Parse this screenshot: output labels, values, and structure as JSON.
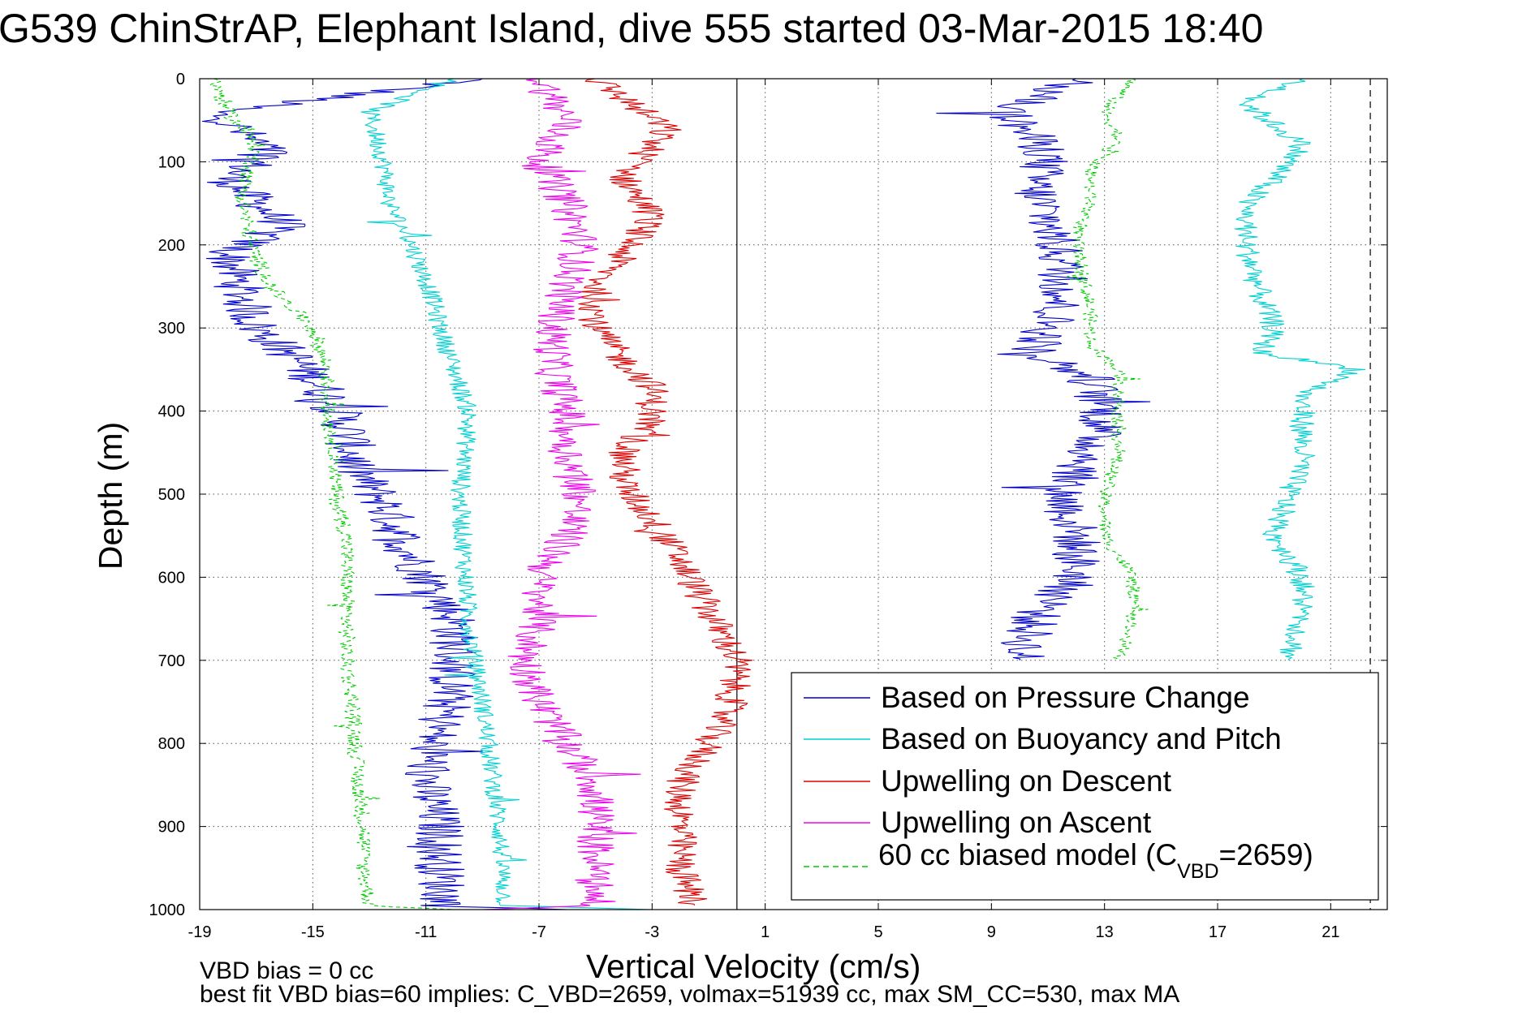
{
  "chart_data": {
    "type": "line",
    "title": "G539 ChinStrAP, Elephant Island, dive 555 started 03-Mar-2015 18:40",
    "xlabel": "Vertical Velocity (cm/s)",
    "ylabel": "Depth (m)",
    "xlim": [
      -19,
      23
    ],
    "ylim": [
      1000,
      0
    ],
    "y_reversed": true,
    "grid": true,
    "legend_position": "bottom-right",
    "x_ticks": [
      "-19",
      "-15",
      "-11",
      "-7",
      "-3",
      "1",
      "5",
      "9",
      "13",
      "17",
      "21"
    ],
    "y_ticks": [
      "0",
      "100",
      "200",
      "300",
      "400",
      "500",
      "600",
      "700",
      "800",
      "900",
      "1000"
    ],
    "reference_lines": [
      {
        "x": 0,
        "style": "solid",
        "color": "#000000"
      },
      {
        "x": 22.4,
        "style": "dashed",
        "color": "#000000"
      }
    ],
    "series": [
      {
        "name": "Based on Pressure Change",
        "color": "#0000cc",
        "style": "solid",
        "noise": 0.9,
        "points": [
          [
            -9,
            0
          ],
          [
            -18.5,
            40
          ],
          [
            -16.5,
            90
          ],
          [
            -18,
            120
          ],
          [
            -17,
            150
          ],
          [
            -16,
            175
          ],
          [
            -18,
            210
          ],
          [
            -17.5,
            260
          ],
          [
            -17,
            300
          ],
          [
            -15.5,
            340
          ],
          [
            -14.5,
            380
          ],
          [
            -13.8,
            420
          ],
          [
            -13.5,
            470
          ],
          [
            -12.5,
            510
          ],
          [
            -11.8,
            560
          ],
          [
            -11,
            600
          ],
          [
            -10,
            650
          ],
          [
            -10,
            700
          ],
          [
            -10.2,
            750
          ],
          [
            -10.8,
            800
          ],
          [
            -11,
            850
          ],
          [
            -10.5,
            900
          ],
          [
            -10.5,
            950
          ],
          [
            -10.3,
            995
          ],
          [
            -6,
            1000
          ]
        ]
      },
      {
        "name": "Based on Buoyancy and Pitch",
        "color": "#00d0d0",
        "style": "solid",
        "noise": 0.35,
        "points": [
          [
            -10,
            0
          ],
          [
            -13,
            40
          ],
          [
            -12.5,
            100
          ],
          [
            -12.3,
            150
          ],
          [
            -11.5,
            200
          ],
          [
            -10.8,
            260
          ],
          [
            -10.5,
            300
          ],
          [
            -10,
            350
          ],
          [
            -9.5,
            400
          ],
          [
            -9.6,
            450
          ],
          [
            -9.8,
            500
          ],
          [
            -9.7,
            550
          ],
          [
            -9.6,
            600
          ],
          [
            -9.5,
            650
          ],
          [
            -9.3,
            700
          ],
          [
            -9,
            750
          ],
          [
            -8.8,
            800
          ],
          [
            -8.6,
            850
          ],
          [
            -8.4,
            900
          ],
          [
            -8.3,
            950
          ],
          [
            -8.2,
            995
          ],
          [
            -3,
            1000
          ]
        ]
      },
      {
        "name": "Upwelling on Descent",
        "color": "#dd0000",
        "style": "solid",
        "noise": 0.6,
        "points": [
          [
            -5,
            0
          ],
          [
            -2.5,
            60
          ],
          [
            -4,
            120
          ],
          [
            -3,
            165
          ],
          [
            -4,
            210
          ],
          [
            -5,
            250
          ],
          [
            -5,
            300
          ],
          [
            -4,
            340
          ],
          [
            -3,
            370
          ],
          [
            -3,
            410
          ],
          [
            -4,
            450
          ],
          [
            -4,
            490
          ],
          [
            -3,
            530
          ],
          [
            -2,
            580
          ],
          [
            -1,
            640
          ],
          [
            0,
            700
          ],
          [
            -0.2,
            750
          ],
          [
            -1,
            800
          ],
          [
            -2,
            850
          ],
          [
            -2,
            900
          ],
          [
            -2,
            950
          ],
          [
            -1.5,
            995
          ]
        ]
      },
      {
        "name": "Upwelling on Ascent",
        "color": "#ee00ee",
        "style": "solid",
        "noise": 0.7,
        "points": [
          [
            -7,
            0
          ],
          [
            -6,
            50
          ],
          [
            -7,
            100
          ],
          [
            -6,
            150
          ],
          [
            -5.5,
            200
          ],
          [
            -6,
            250
          ],
          [
            -6.5,
            300
          ],
          [
            -6.5,
            350
          ],
          [
            -6,
            400
          ],
          [
            -6,
            450
          ],
          [
            -5.5,
            500
          ],
          [
            -6,
            550
          ],
          [
            -7,
            600
          ],
          [
            -7,
            650
          ],
          [
            -7.5,
            700
          ],
          [
            -7,
            750
          ],
          [
            -6,
            800
          ],
          [
            -5,
            850
          ],
          [
            -5,
            900
          ],
          [
            -5,
            950
          ],
          [
            -5,
            995
          ],
          [
            -9,
            1000
          ]
        ]
      },
      {
        "name": "60 cc biased model (C_VBD=2659)",
        "color": "#00cc00",
        "style": "dashed",
        "noise": 0.3,
        "points": [
          [
            -18.5,
            0
          ],
          [
            -18,
            40
          ],
          [
            -17,
            80
          ],
          [
            -17.5,
            140
          ],
          [
            -17.2,
            200
          ],
          [
            -16.5,
            250
          ],
          [
            -15,
            300
          ],
          [
            -14.5,
            350
          ],
          [
            -14.5,
            400
          ],
          [
            -14.2,
            450
          ],
          [
            -14.2,
            500
          ],
          [
            -13.8,
            550
          ],
          [
            -13.8,
            600
          ],
          [
            -13.8,
            650
          ],
          [
            -13.8,
            700
          ],
          [
            -13.6,
            750
          ],
          [
            -13.5,
            800
          ],
          [
            -13.4,
            850
          ],
          [
            -13.2,
            900
          ],
          [
            -13.2,
            950
          ],
          [
            -13,
            995
          ],
          [
            -10,
            1000
          ]
        ]
      },
      {
        "name": "Based on Pressure Change (ascent)",
        "color": "#0000cc",
        "style": "solid",
        "noise": 0.9,
        "points": [
          [
            12,
            0
          ],
          [
            9.5,
            40
          ],
          [
            11,
            90
          ],
          [
            10.5,
            130
          ],
          [
            11,
            170
          ],
          [
            11.5,
            220
          ],
          [
            11.5,
            260
          ],
          [
            11,
            300
          ],
          [
            10.5,
            330
          ],
          [
            12.5,
            360
          ],
          [
            13,
            400
          ],
          [
            12.5,
            450
          ],
          [
            11.5,
            500
          ],
          [
            12,
            550
          ],
          [
            12,
            600
          ],
          [
            10.5,
            650
          ],
          [
            10,
            700
          ]
        ]
      },
      {
        "name": "Based on Buoyancy and Pitch (ascent)",
        "color": "#00d0d0",
        "style": "solid",
        "noise": 0.45,
        "points": [
          [
            20,
            0
          ],
          [
            18,
            30
          ],
          [
            20,
            80
          ],
          [
            19,
            120
          ],
          [
            18,
            150
          ],
          [
            18,
            200
          ],
          [
            18.5,
            260
          ],
          [
            19,
            300
          ],
          [
            18.5,
            330
          ],
          [
            22,
            350
          ],
          [
            20,
            380
          ],
          [
            20,
            420
          ],
          [
            20,
            460
          ],
          [
            19.5,
            500
          ],
          [
            19,
            550
          ],
          [
            20,
            600
          ],
          [
            20,
            650
          ],
          [
            19.5,
            700
          ]
        ]
      },
      {
        "name": "60 cc biased model (ascent)",
        "color": "#00cc00",
        "style": "dashed",
        "noise": 0.25,
        "points": [
          [
            14,
            0
          ],
          [
            13,
            40
          ],
          [
            13.5,
            70
          ],
          [
            12.5,
            110
          ],
          [
            12.5,
            150
          ],
          [
            12,
            190
          ],
          [
            12.2,
            230
          ],
          [
            12.5,
            280
          ],
          [
            12.5,
            320
          ],
          [
            13.5,
            350
          ],
          [
            13.5,
            400
          ],
          [
            13.5,
            450
          ],
          [
            13,
            500
          ],
          [
            13,
            550
          ],
          [
            14,
            600
          ],
          [
            14,
            650
          ],
          [
            13.5,
            700
          ]
        ]
      }
    ],
    "legend": [
      {
        "label": "Based on Pressure Change",
        "color": "#0000cc",
        "style": "solid"
      },
      {
        "label": "Based on Buoyancy and Pitch",
        "color": "#00d0d0",
        "style": "solid"
      },
      {
        "label": "Upwelling on Descent",
        "color": "#dd0000",
        "style": "solid"
      },
      {
        "label": "Upwelling on Ascent",
        "color": "#ee00ee",
        "style": "solid"
      },
      {
        "label_main": "60 cc biased model (C",
        "label_sub": "VBD",
        "label_tail": "=2659)",
        "color": "#00cc00",
        "style": "dashed"
      }
    ],
    "notes": [
      "VBD bias = 0 cc",
      "best fit VBD bias=60 implies: C_VBD=2659, volmax=51939 cc, max SM_CC=530, max MA"
    ]
  }
}
